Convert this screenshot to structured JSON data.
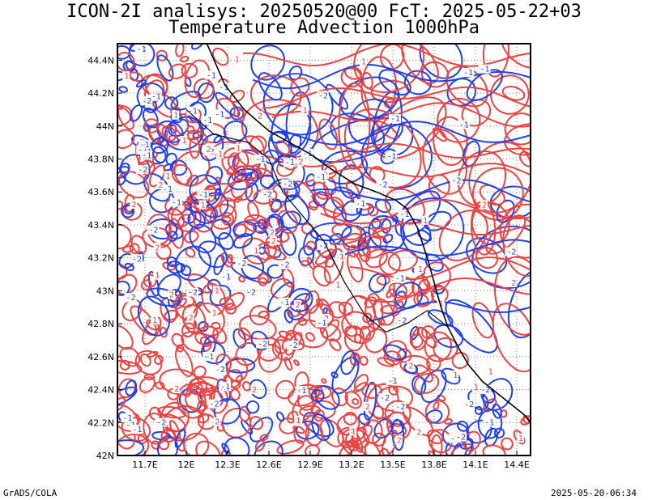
{
  "chart_data": {
    "type": "contour",
    "title": "ICON-2I analisys: 20250520@00 FcT: 2025-05-22+03",
    "subtitle": "Temperature Advection 1000hPa",
    "xlabel": "",
    "ylabel": "",
    "x_ticks": [
      "11.7E",
      "12E",
      "12.3E",
      "12.6E",
      "12.9E",
      "13.2E",
      "13.5E",
      "13.8E",
      "14.1E",
      "14.4E"
    ],
    "x_tick_values": [
      11.7,
      12.0,
      12.3,
      12.6,
      12.9,
      13.2,
      13.5,
      13.8,
      14.1,
      14.4
    ],
    "y_ticks": [
      "42N",
      "42.2N",
      "42.4N",
      "42.6N",
      "42.8N",
      "43N",
      "43.2N",
      "43.4N",
      "43.6N",
      "43.8N",
      "44N",
      "44.2N",
      "44.4N"
    ],
    "y_tick_values": [
      42.0,
      42.2,
      42.4,
      42.6,
      42.8,
      43.0,
      43.2,
      43.4,
      43.6,
      43.8,
      44.0,
      44.2,
      44.4
    ],
    "xlim": [
      11.5,
      14.5
    ],
    "ylim": [
      42.0,
      44.5
    ],
    "grid": true,
    "series": [
      {
        "name": "positive advection contours",
        "color": "#f04040",
        "labels": [
          "1",
          "2"
        ]
      },
      {
        "name": "negative advection contours",
        "color": "#2040f0",
        "labels": [
          "-1",
          "-2"
        ]
      }
    ],
    "coastline_points": [
      [
        12.15,
        44.5
      ],
      [
        12.28,
        44.25
      ],
      [
        12.42,
        44.1
      ],
      [
        12.6,
        43.97
      ],
      [
        12.75,
        43.9
      ],
      [
        12.9,
        43.83
      ],
      [
        13.05,
        43.74
      ],
      [
        13.22,
        43.65
      ],
      [
        13.38,
        43.6
      ],
      [
        13.52,
        43.55
      ],
      [
        13.6,
        43.5
      ],
      [
        13.68,
        43.38
      ],
      [
        13.75,
        43.2
      ],
      [
        13.8,
        43.05
      ],
      [
        13.85,
        42.9
      ],
      [
        13.9,
        42.78
      ],
      [
        13.98,
        42.65
      ],
      [
        14.05,
        42.55
      ],
      [
        14.15,
        42.45
      ],
      [
        14.3,
        42.35
      ],
      [
        14.45,
        42.25
      ],
      [
        14.5,
        42.2
      ]
    ],
    "border_points": [
      [
        12.0,
        44.1
      ],
      [
        12.2,
        43.95
      ],
      [
        12.45,
        43.9
      ],
      [
        12.6,
        43.8
      ],
      [
        12.7,
        43.6
      ],
      [
        12.85,
        43.45
      ],
      [
        13.0,
        43.3
      ],
      [
        13.15,
        43.05
      ],
      [
        13.3,
        42.85
      ],
      [
        13.45,
        42.75
      ],
      [
        13.6,
        42.8
      ],
      [
        13.75,
        42.88
      ],
      [
        13.9,
        42.78
      ]
    ]
  },
  "footer": {
    "left": "GrADS/COLA",
    "right": "2025-05-20-06:34"
  },
  "colors": {
    "positive": "#f04040",
    "negative": "#2040f0",
    "grid": "#888888"
  }
}
